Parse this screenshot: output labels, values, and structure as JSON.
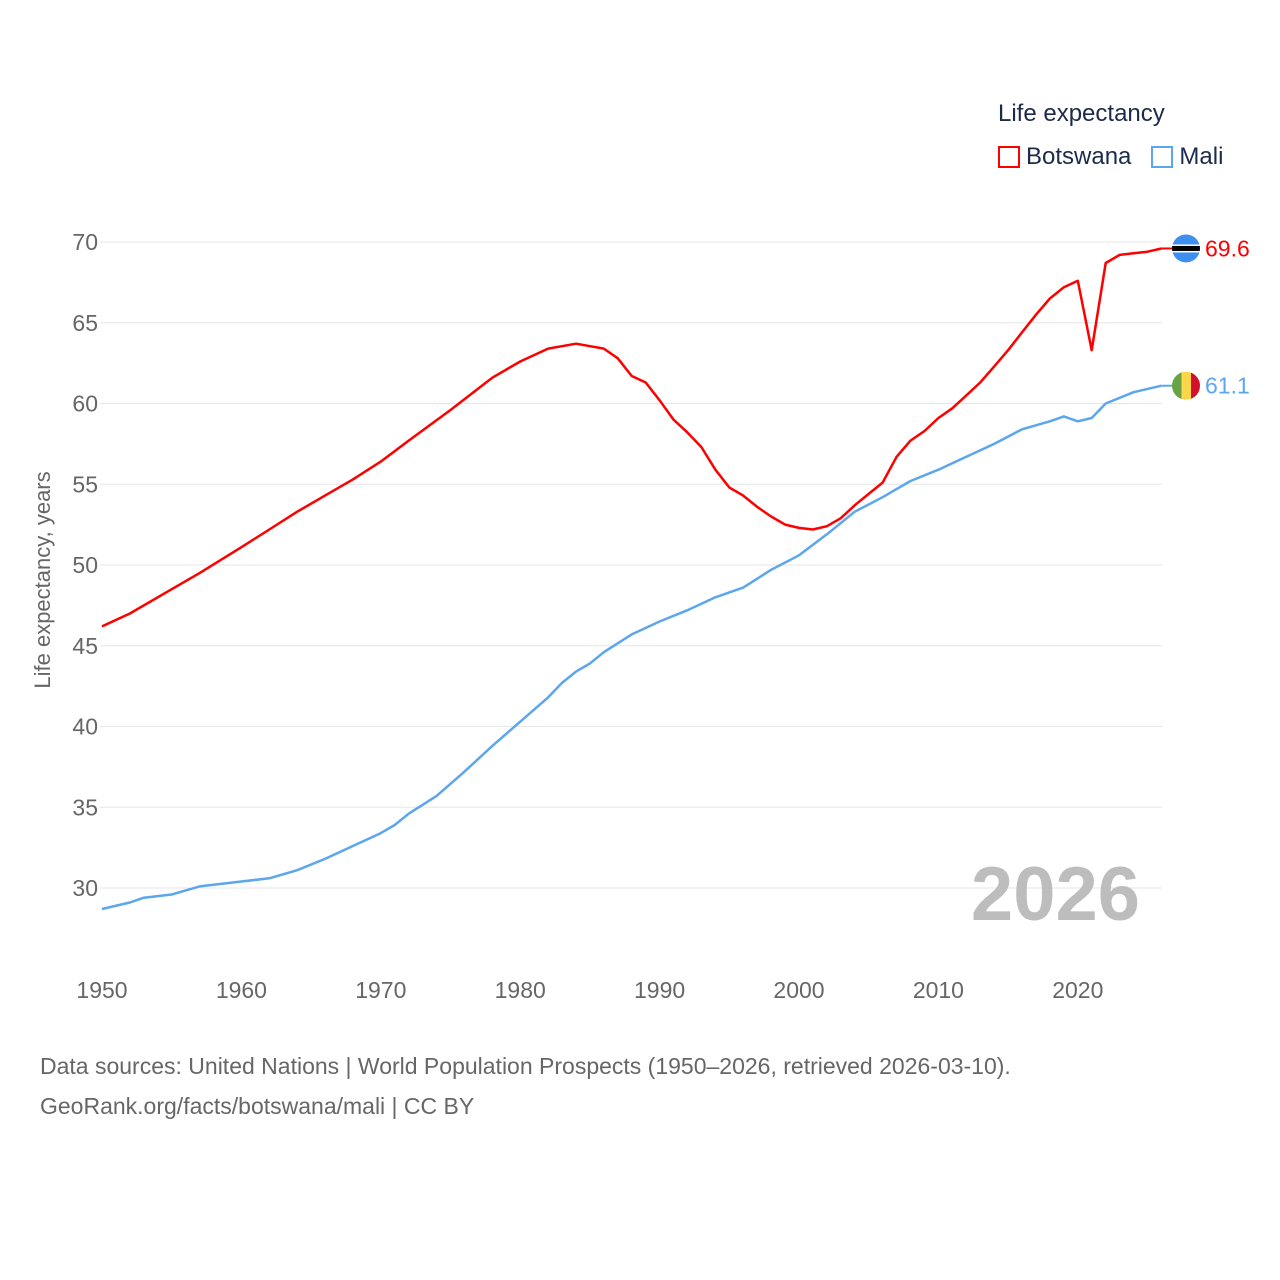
{
  "chart_data": {
    "type": "line",
    "title": "Life expectancy",
    "ylabel": "Life expectancy, years",
    "xlabel": "",
    "ylim": [
      27,
      72
    ],
    "xlim": [
      1950,
      2026
    ],
    "yticks": [
      "30",
      "35",
      "40",
      "45",
      "50",
      "55",
      "60",
      "65",
      "70"
    ],
    "xticks": [
      "1950",
      "1960",
      "1970",
      "1980",
      "1990",
      "2000",
      "2010",
      "2020"
    ],
    "grid": true,
    "legend_placement": "top-right",
    "year_overlay": "2026",
    "series": [
      {
        "name": "Botswana",
        "color": "#ff0000",
        "end_label": "69.6",
        "flag": "botswana-flag",
        "points": [
          [
            1950,
            46.2
          ],
          [
            1952,
            47.0
          ],
          [
            1955,
            48.5
          ],
          [
            1957,
            49.5
          ],
          [
            1960,
            51.1
          ],
          [
            1962,
            52.2
          ],
          [
            1964,
            53.3
          ],
          [
            1966,
            54.3
          ],
          [
            1968,
            55.3
          ],
          [
            1970,
            56.4
          ],
          [
            1972,
            57.7
          ],
          [
            1975,
            59.6
          ],
          [
            1978,
            61.6
          ],
          [
            1980,
            62.6
          ],
          [
            1982,
            63.4
          ],
          [
            1984,
            63.7
          ],
          [
            1986,
            63.4
          ],
          [
            1987,
            62.8
          ],
          [
            1988,
            61.7
          ],
          [
            1989,
            61.3
          ],
          [
            1990,
            60.2
          ],
          [
            1991,
            59.0
          ],
          [
            1992,
            58.2
          ],
          [
            1993,
            57.3
          ],
          [
            1994,
            55.9
          ],
          [
            1995,
            54.8
          ],
          [
            1996,
            54.3
          ],
          [
            1997,
            53.6
          ],
          [
            1998,
            53.0
          ],
          [
            1999,
            52.5
          ],
          [
            2000,
            52.3
          ],
          [
            2001,
            52.2
          ],
          [
            2002,
            52.4
          ],
          [
            2003,
            52.9
          ],
          [
            2004,
            53.7
          ],
          [
            2005,
            54.4
          ],
          [
            2006,
            55.1
          ],
          [
            2007,
            56.7
          ],
          [
            2008,
            57.7
          ],
          [
            2009,
            58.3
          ],
          [
            2010,
            59.1
          ],
          [
            2011,
            59.7
          ],
          [
            2012,
            60.5
          ],
          [
            2013,
            61.3
          ],
          [
            2014,
            62.3
          ],
          [
            2015,
            63.3
          ],
          [
            2016,
            64.4
          ],
          [
            2017,
            65.5
          ],
          [
            2018,
            66.5
          ],
          [
            2019,
            67.2
          ],
          [
            2020,
            67.6
          ],
          [
            2021,
            63.3
          ],
          [
            2022,
            68.7
          ],
          [
            2023,
            69.2
          ],
          [
            2024,
            69.3
          ],
          [
            2025,
            69.4
          ],
          [
            2026,
            69.6
          ]
        ]
      },
      {
        "name": "Mali",
        "color": "#5ba6ef",
        "end_label": "61.1",
        "flag": "mali-flag",
        "points": [
          [
            1950,
            28.7
          ],
          [
            1952,
            29.1
          ],
          [
            1953,
            29.4
          ],
          [
            1955,
            29.6
          ],
          [
            1957,
            30.1
          ],
          [
            1960,
            30.4
          ],
          [
            1962,
            30.6
          ],
          [
            1964,
            31.1
          ],
          [
            1966,
            31.8
          ],
          [
            1968,
            32.6
          ],
          [
            1970,
            33.4
          ],
          [
            1971,
            33.9
          ],
          [
            1972,
            34.6
          ],
          [
            1974,
            35.7
          ],
          [
            1976,
            37.2
          ],
          [
            1978,
            38.8
          ],
          [
            1980,
            40.3
          ],
          [
            1982,
            41.8
          ],
          [
            1983,
            42.7
          ],
          [
            1984,
            43.4
          ],
          [
            1985,
            43.9
          ],
          [
            1986,
            44.6
          ],
          [
            1988,
            45.7
          ],
          [
            1990,
            46.5
          ],
          [
            1992,
            47.2
          ],
          [
            1994,
            48.0
          ],
          [
            1996,
            48.6
          ],
          [
            1998,
            49.7
          ],
          [
            2000,
            50.6
          ],
          [
            2002,
            51.9
          ],
          [
            2004,
            53.3
          ],
          [
            2006,
            54.2
          ],
          [
            2008,
            55.2
          ],
          [
            2010,
            55.9
          ],
          [
            2012,
            56.7
          ],
          [
            2014,
            57.5
          ],
          [
            2016,
            58.4
          ],
          [
            2018,
            58.9
          ],
          [
            2019,
            59.2
          ],
          [
            2020,
            58.9
          ],
          [
            2021,
            59.1
          ],
          [
            2022,
            60.0
          ],
          [
            2024,
            60.7
          ],
          [
            2026,
            61.1
          ]
        ]
      }
    ]
  },
  "footer": {
    "source": "Data sources: United Nations | World Population Prospects (1950–2026, retrieved 2026-03-10).",
    "credit": "GeoRank.org/facts/botswana/mali | CC BY"
  }
}
